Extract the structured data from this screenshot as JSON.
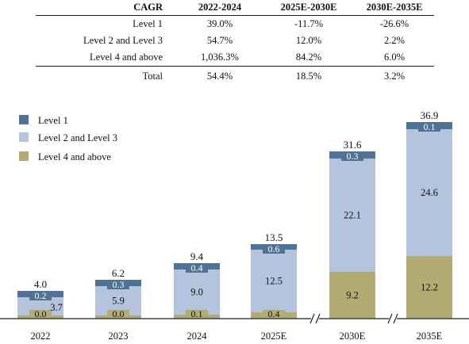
{
  "table": {
    "headers": [
      "CAGR",
      "2022-2024",
      "2025E-2030E",
      "2030E-2035E"
    ],
    "rows": [
      [
        "Level 1",
        "39.0%",
        "-11.7%",
        "-26.6%"
      ],
      [
        "Level 2 and Level 3",
        "54.7%",
        "12.0%",
        "2.2%"
      ],
      [
        "Level 4 and above",
        "1,036.3%",
        "84.2%",
        "6.0%"
      ]
    ],
    "total": [
      "Total",
      "54.4%",
      "18.5%",
      "3.2%"
    ]
  },
  "chart_data": {
    "type": "bar",
    "stacked": true,
    "categories": [
      "2022",
      "2023",
      "2024",
      "2025E",
      "2030E",
      "2035E"
    ],
    "axis_breaks_before": [
      "2030E",
      "2035E"
    ],
    "series": [
      {
        "name": "Level 4 and above",
        "values": [
          0.0,
          0.0,
          0.1,
          0.4,
          9.2,
          12.2
        ],
        "labels": [
          "0.0",
          "0.0",
          "0.1",
          "0.4",
          "9.2",
          "12.2"
        ],
        "color": "#b3ac72"
      },
      {
        "name": "Level 2 and Level 3",
        "values": [
          3.7,
          5.9,
          9.0,
          12.5,
          22.1,
          24.6
        ],
        "labels": [
          "3.7",
          "5.9",
          "9.0",
          "12.5",
          "22.1",
          "24.6"
        ],
        "color": "#b3c4dc"
      },
      {
        "name": "Level 1",
        "values": [
          0.2,
          0.3,
          0.4,
          0.6,
          0.3,
          0.1
        ],
        "labels": [
          "0.2",
          "0.3",
          "0.4",
          "0.6",
          "0.3",
          "0.1"
        ],
        "color": "#4f7296"
      }
    ],
    "totals": [
      4.0,
      6.2,
      9.4,
      13.5,
      31.6,
      36.9
    ],
    "total_labels": [
      "4.0",
      "6.2",
      "9.4",
      "13.5",
      "31.6",
      "36.9"
    ],
    "legend": {
      "position": "top-left",
      "items": [
        {
          "label": "Level 1",
          "color": "#4f7296"
        },
        {
          "label": "Level 2 and Level 3",
          "color": "#b3c4dc"
        },
        {
          "label": "Level 4 and above",
          "color": "#b3ac72"
        }
      ]
    }
  }
}
